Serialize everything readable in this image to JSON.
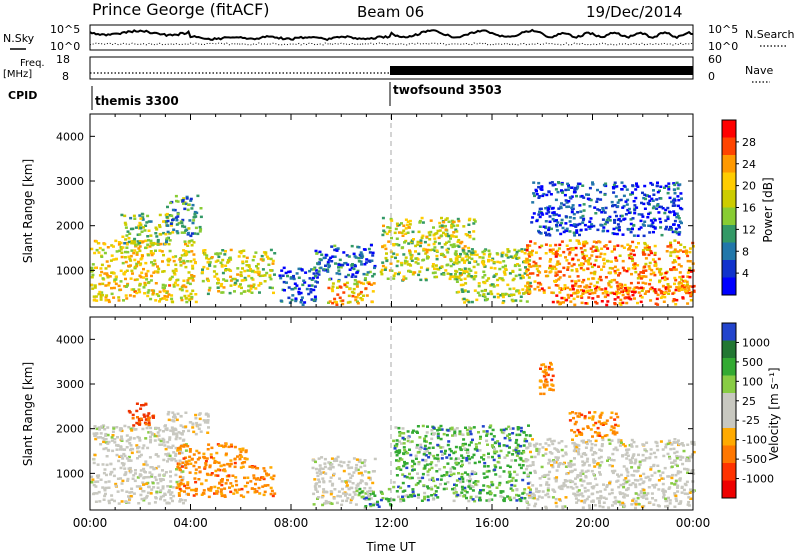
{
  "header": {
    "station": "Prince George (fitACF)",
    "beam": "Beam 06",
    "date": "19/Dec/2014"
  },
  "top_panels": {
    "nsky_label": "N.Sky",
    "nsky_ticks": [
      "10^5",
      "10^0"
    ],
    "nsearch_label": "N.Search",
    "nsearch_ticks": [
      "10^5",
      "10^0"
    ],
    "freq_label_1": "Freq.",
    "freq_label_2": "[MHz]",
    "freq_ticks": [
      "18",
      "8"
    ],
    "nave_label": "Nave",
    "nave_ticks": [
      "60",
      "0"
    ],
    "cpid_label": "CPID",
    "cpid_segments": [
      {
        "name": "themis 3300",
        "start_hour": 0
      },
      {
        "name": "twofsound 3503",
        "start_hour": 12
      }
    ]
  },
  "chart_data": [
    {
      "type": "heatmap",
      "title": "",
      "ylabel": "Slant Range [km]",
      "xlabel": "Time UT",
      "xlim_hours": [
        0,
        24
      ],
      "ylim": [
        180,
        4500
      ],
      "y_ticks": [
        "1000",
        "2000",
        "3000",
        "4000"
      ],
      "x_ticks": [
        "00:00",
        "04:00",
        "08:00",
        "12:00",
        "16:00",
        "20:00",
        "00:00"
      ],
      "colorbar": {
        "label": "Power [dB]",
        "ticks": [
          "28",
          "24",
          "20",
          "16",
          "12",
          "8",
          "4"
        ],
        "colors": [
          "#ff0000",
          "#ff4400",
          "#ff9900",
          "#ffcc00",
          "#cccc00",
          "#88cc33",
          "#339966",
          "#2277aa",
          "#1133cc",
          "#0000ff"
        ]
      },
      "regions": [
        {
          "t0": 0.0,
          "t1": 4.2,
          "r0": 300,
          "r1": 1700,
          "level": 0.62
        },
        {
          "t0": 1.2,
          "t1": 3.3,
          "r0": 1600,
          "r1": 2300,
          "level": 0.45
        },
        {
          "t0": 3.0,
          "t1": 4.4,
          "r0": 1800,
          "r1": 2700,
          "level": 0.3
        },
        {
          "t0": 4.4,
          "t1": 7.3,
          "r0": 500,
          "r1": 1500,
          "level": 0.55
        },
        {
          "t0": 7.5,
          "t1": 9.0,
          "r0": 250,
          "r1": 1100,
          "level": 0.15
        },
        {
          "t0": 8.8,
          "t1": 11.3,
          "r0": 800,
          "r1": 1600,
          "level": 0.2
        },
        {
          "t0": 9.4,
          "t1": 11.3,
          "r0": 250,
          "r1": 800,
          "level": 0.7
        },
        {
          "t0": 11.5,
          "t1": 15.3,
          "r0": 800,
          "r1": 2200,
          "level": 0.55
        },
        {
          "t0": 14.5,
          "t1": 17.5,
          "r0": 300,
          "r1": 1500,
          "level": 0.5
        },
        {
          "t0": 17.3,
          "t1": 24.0,
          "r0": 500,
          "r1": 1700,
          "level": 0.75
        },
        {
          "t0": 18.3,
          "t1": 24.0,
          "r0": 250,
          "r1": 700,
          "level": 0.85
        },
        {
          "t0": 17.5,
          "t1": 23.5,
          "r0": 1800,
          "r1": 3000,
          "level": 0.12
        }
      ]
    },
    {
      "type": "heatmap",
      "title": "",
      "ylabel": "Slant Range [km]",
      "xlabel": "Time UT",
      "xlim_hours": [
        0,
        24
      ],
      "ylim": [
        180,
        4500
      ],
      "y_ticks": [
        "1000",
        "2000",
        "3000",
        "4000"
      ],
      "x_ticks": [
        "00:00",
        "04:00",
        "08:00",
        "12:00",
        "16:00",
        "20:00",
        "00:00"
      ],
      "colorbar": {
        "label": "Velocity [m s⁻¹]",
        "ticks": [
          "1000",
          "500",
          "100",
          "25",
          "-25",
          "-100",
          "-500",
          "-1000"
        ],
        "colors": [
          "#2244cc",
          "#227733",
          "#33aa33",
          "#88cc44",
          "#c8c8c0",
          "#c8c8c0",
          "#ffaa00",
          "#ff7700",
          "#ff3300",
          "#ee0000"
        ]
      },
      "regions": [
        {
          "t0": 0.0,
          "t1": 3.8,
          "r0": 350,
          "r1": 2100,
          "kind": "gray"
        },
        {
          "t0": 1.5,
          "t1": 2.5,
          "r0": 2100,
          "r1": 2600,
          "kind": "red"
        },
        {
          "t0": 2.8,
          "t1": 4.7,
          "r0": 1900,
          "r1": 2400,
          "kind": "gray"
        },
        {
          "t0": 3.4,
          "t1": 6.2,
          "r0": 500,
          "r1": 1700,
          "kind": "orange"
        },
        {
          "t0": 6.2,
          "t1": 7.3,
          "r0": 500,
          "r1": 1200,
          "kind": "orange"
        },
        {
          "t0": 8.8,
          "t1": 11.3,
          "r0": 300,
          "r1": 1400,
          "kind": "gray"
        },
        {
          "t0": 10.5,
          "t1": 12.0,
          "r0": 250,
          "r1": 700,
          "kind": "green"
        },
        {
          "t0": 12.0,
          "t1": 17.5,
          "r0": 400,
          "r1": 2100,
          "kind": "green"
        },
        {
          "t0": 17.3,
          "t1": 24.0,
          "r0": 250,
          "r1": 1800,
          "kind": "gray"
        },
        {
          "t0": 17.8,
          "t1": 18.4,
          "r0": 2800,
          "r1": 3500,
          "kind": "orange"
        },
        {
          "t0": 19.0,
          "t1": 21.0,
          "r0": 1800,
          "r1": 2400,
          "kind": "orange"
        }
      ]
    }
  ]
}
